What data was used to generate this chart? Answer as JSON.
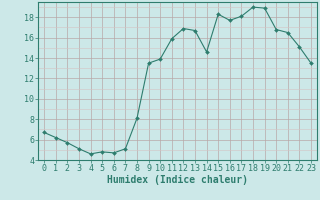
{
  "x": [
    0,
    1,
    2,
    3,
    4,
    5,
    6,
    7,
    8,
    9,
    10,
    11,
    12,
    13,
    14,
    15,
    16,
    17,
    18,
    19,
    20,
    21,
    22,
    23
  ],
  "y": [
    6.7,
    6.2,
    5.7,
    5.1,
    4.6,
    4.8,
    4.7,
    5.1,
    8.1,
    13.5,
    13.9,
    15.9,
    16.9,
    16.7,
    14.6,
    18.3,
    17.7,
    18.1,
    19.0,
    18.9,
    16.8,
    16.5,
    15.1,
    13.5
  ],
  "line_color": "#2e7d6e",
  "marker": "D",
  "marker_size": 2.0,
  "bg_color": "#cce8e8",
  "grid_color_major": "#b8a8a8",
  "grid_color_minor": "#d4c4c4",
  "xlabel": "Humidex (Indice chaleur)",
  "ylim": [
    4,
    19.5
  ],
  "xlim": [
    -0.5,
    23.5
  ],
  "yticks": [
    4,
    6,
    8,
    10,
    12,
    14,
    16,
    18
  ],
  "xticks": [
    0,
    1,
    2,
    3,
    4,
    5,
    6,
    7,
    8,
    9,
    10,
    11,
    12,
    13,
    14,
    15,
    16,
    17,
    18,
    19,
    20,
    21,
    22,
    23
  ],
  "tick_color": "#2e7d6e",
  "label_fontsize": 7.0,
  "tick_fontsize": 6.0
}
